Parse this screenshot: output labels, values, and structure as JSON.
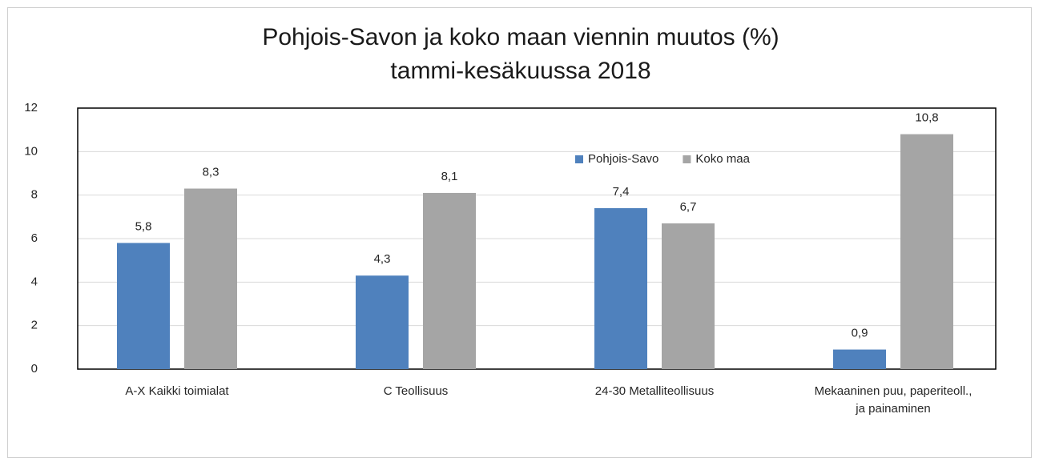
{
  "chart_data": {
    "type": "bar",
    "title": [
      "Pohjois-Savon ja koko maan viennin muutos (%)",
      "tammi-kesäkuussa 2018"
    ],
    "categories": [
      "A-X Kaikki toimialat",
      "C Teollisuus",
      "24-30 Metalliteollisuus",
      "Mekaaninen puu, paperiteoll., ja painaminen"
    ],
    "series": [
      {
        "name": "Pohjois-Savo",
        "color": "#4f81bd",
        "values": [
          5.8,
          4.3,
          7.4,
          0.9
        ],
        "value_labels": [
          "5,8",
          "4,3",
          "7,4",
          "0,9"
        ]
      },
      {
        "name": "Koko maa",
        "color": "#a5a5a5",
        "values": [
          8.3,
          8.1,
          6.7,
          10.8
        ],
        "value_labels": [
          "8,3",
          "8,1",
          "6,7",
          "10,8"
        ]
      }
    ],
    "ylim": [
      0,
      12
    ],
    "yticks": [
      0,
      2,
      4,
      6,
      8,
      10,
      12
    ],
    "grid": true,
    "legend": "top-center"
  }
}
